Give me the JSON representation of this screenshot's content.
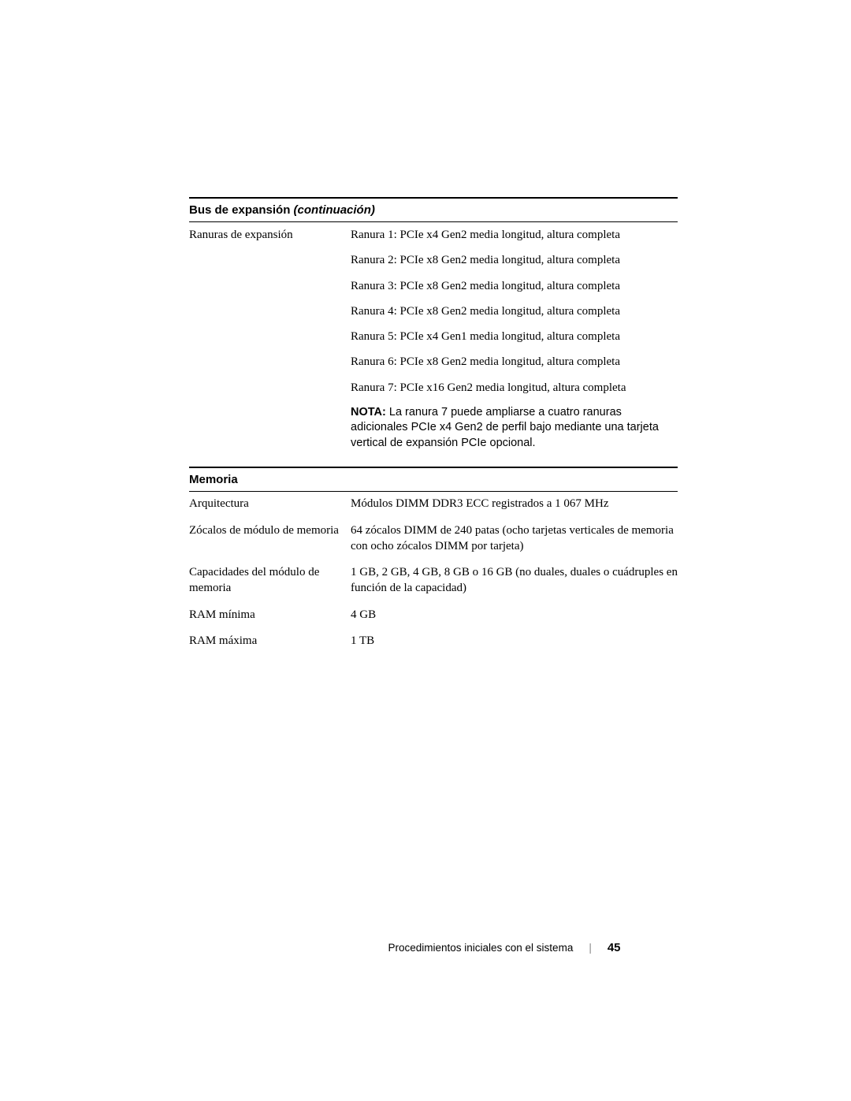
{
  "sections": {
    "expansion": {
      "title_prefix": "Bus de expansión ",
      "title_suffix": "(continuación)",
      "row_label": "Ranuras de expansión",
      "slots": [
        "Ranura 1: PCIe x4 Gen2 media longitud, altura completa",
        "Ranura 2: PCIe x8 Gen2 media longitud, altura completa",
        "Ranura 3: PCIe x8 Gen2 media longitud, altura completa",
        "Ranura 4: PCIe x8 Gen2 media longitud, altura completa",
        "Ranura 5: PCIe x4 Gen1 media longitud, altura completa",
        "Ranura 6: PCIe x8 Gen2 media longitud, altura completa",
        "Ranura 7: PCIe x16 Gen2 media longitud, altura completa"
      ],
      "note_label": "NOTA: ",
      "note_text": "La ranura 7 puede ampliarse a cuatro ranuras adicionales PCIe x4 Gen2 de perfil bajo mediante una tarjeta vertical de expansión PCIe opcional."
    },
    "memory": {
      "title": "Memoria",
      "rows": [
        {
          "label": "Arquitectura",
          "value": "Módulos DIMM DDR3 ECC registrados a 1 067 MHz"
        },
        {
          "label": "Zócalos de módulo de memoria",
          "value": "64 zócalos DIMM de 240 patas (ocho tarjetas verticales de memoria con ocho zócalos DIMM por tarjeta)"
        },
        {
          "label": "Capacidades del módulo de memoria",
          "value": "1 GB, 2 GB, 4 GB, 8 GB o 16 GB (no duales, duales o cuádruples en función de la capacidad)"
        },
        {
          "label": "RAM mínima",
          "value": "4 GB"
        },
        {
          "label": "RAM máxima",
          "value": "1 TB"
        }
      ]
    }
  },
  "footer": {
    "text": "Procedimientos iniciales con el sistema",
    "separator": "|",
    "page": "45"
  }
}
